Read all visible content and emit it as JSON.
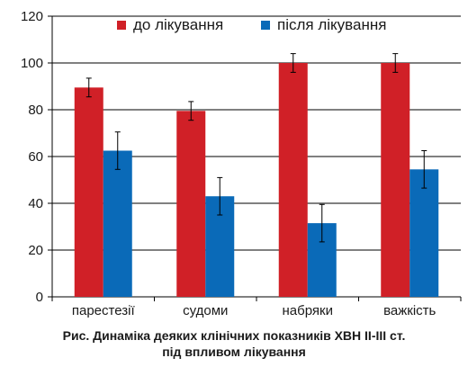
{
  "chart_data": {
    "type": "bar",
    "categories": [
      "парестезії",
      "судоми",
      "набряки",
      "важкість"
    ],
    "series": [
      {
        "name": "до лікування",
        "color": "#d02027",
        "values": [
          89.5,
          79.5,
          100,
          100
        ],
        "errors": [
          4,
          4,
          4,
          4
        ]
      },
      {
        "name": "після лікування",
        "color": "#0a6ab8",
        "values": [
          62.5,
          43,
          31.5,
          54.5
        ],
        "errors": [
          8,
          8,
          8,
          8
        ]
      }
    ],
    "ylim": [
      0,
      120
    ],
    "yticks": [
      "0",
      "20",
      "40",
      "60",
      "80",
      "100",
      "120"
    ],
    "grid": true,
    "legend_position": "top"
  },
  "caption": {
    "line1": "Рис. Динаміка деяких клінічних показників ХВН II-III ст.",
    "line2": "під впливом лікування"
  }
}
